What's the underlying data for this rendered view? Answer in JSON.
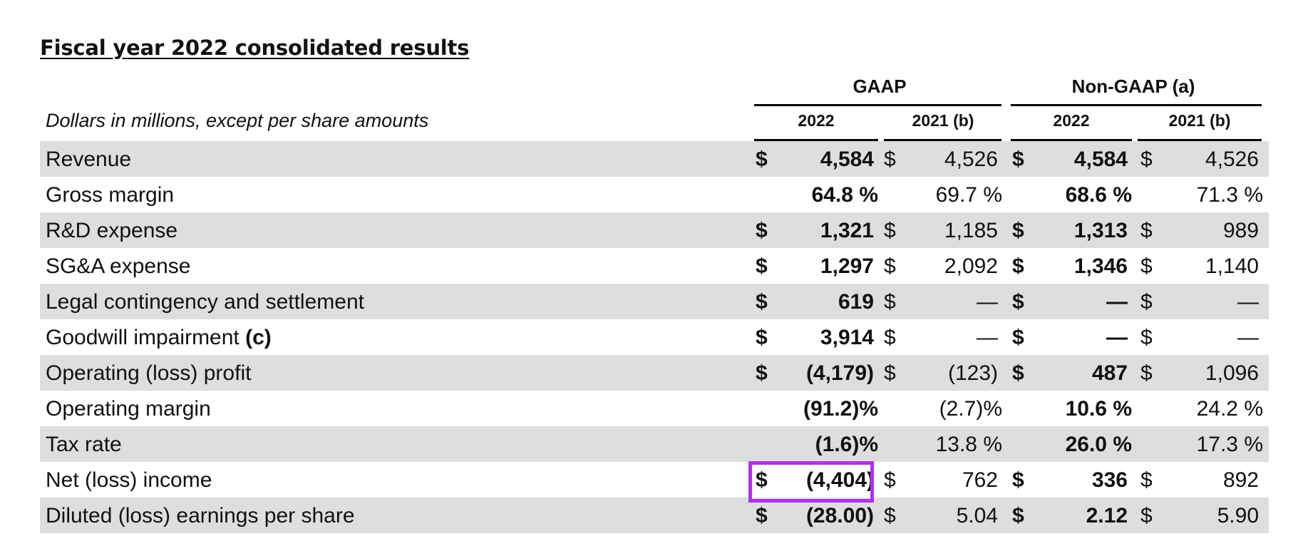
{
  "title": "Fiscal year 2022 consolidated results",
  "caption": "Dollars in millions, except per share amounts",
  "headers": {
    "groups": [
      "GAAP",
      "Non-GAAP (a)"
    ],
    "columns": [
      "2022",
      "2021 (b)",
      "2022",
      "2021 (b)"
    ]
  },
  "rows": [
    {
      "label": "Revenue",
      "note": "",
      "shaded": true,
      "cells": [
        {
          "cur": "$",
          "val": "4,584"
        },
        {
          "cur": "$",
          "val": "4,526"
        },
        {
          "cur": "$",
          "val": "4,584"
        },
        {
          "cur": "$",
          "val": "4,526"
        }
      ]
    },
    {
      "label": "Gross margin",
      "note": "",
      "shaded": false,
      "cells": [
        {
          "cur": "",
          "val": "64.8 %"
        },
        {
          "cur": "",
          "val": "69.7 %"
        },
        {
          "cur": "",
          "val": "68.6 %"
        },
        {
          "cur": "",
          "val": "71.3 %"
        }
      ]
    },
    {
      "label": "R&D expense",
      "note": "",
      "shaded": true,
      "cells": [
        {
          "cur": "$",
          "val": "1,321"
        },
        {
          "cur": "$",
          "val": "1,185"
        },
        {
          "cur": "$",
          "val": "1,313"
        },
        {
          "cur": "$",
          "val": "989"
        }
      ]
    },
    {
      "label": "SG&A expense",
      "note": "",
      "shaded": false,
      "cells": [
        {
          "cur": "$",
          "val": "1,297"
        },
        {
          "cur": "$",
          "val": "2,092"
        },
        {
          "cur": "$",
          "val": "1,346"
        },
        {
          "cur": "$",
          "val": "1,140"
        }
      ]
    },
    {
      "label": "Legal contingency and settlement",
      "note": "",
      "shaded": true,
      "cells": [
        {
          "cur": "$",
          "val": "619"
        },
        {
          "cur": "$",
          "val": "—"
        },
        {
          "cur": "$",
          "val": "—"
        },
        {
          "cur": "$",
          "val": "—"
        }
      ]
    },
    {
      "label": "Goodwill impairment ",
      "note": "(c)",
      "shaded": false,
      "cells": [
        {
          "cur": "$",
          "val": "3,914"
        },
        {
          "cur": "$",
          "val": "—"
        },
        {
          "cur": "$",
          "val": "—"
        },
        {
          "cur": "$",
          "val": "—"
        }
      ]
    },
    {
      "label": "Operating (loss) profit",
      "note": "",
      "shaded": true,
      "cells": [
        {
          "cur": "$",
          "val": "(4,179)"
        },
        {
          "cur": "$",
          "val": "(123)"
        },
        {
          "cur": "$",
          "val": "487"
        },
        {
          "cur": "$",
          "val": "1,096"
        }
      ]
    },
    {
      "label": "Operating margin",
      "note": "",
      "shaded": false,
      "cells": [
        {
          "cur": "",
          "val": "(91.2)%"
        },
        {
          "cur": "",
          "val": "(2.7)%"
        },
        {
          "cur": "",
          "val": "10.6 %"
        },
        {
          "cur": "",
          "val": "24.2 %"
        }
      ]
    },
    {
      "label": "Tax rate",
      "note": "",
      "shaded": true,
      "cells": [
        {
          "cur": "",
          "val": "(1.6)%"
        },
        {
          "cur": "",
          "val": "13.8 %"
        },
        {
          "cur": "",
          "val": "26.0 %"
        },
        {
          "cur": "",
          "val": "17.3 %"
        }
      ]
    },
    {
      "label": "Net (loss) income",
      "note": "",
      "shaded": false,
      "cells": [
        {
          "cur": "$",
          "val": "(4,404)"
        },
        {
          "cur": "$",
          "val": "762"
        },
        {
          "cur": "$",
          "val": "336"
        },
        {
          "cur": "$",
          "val": "892"
        }
      ]
    },
    {
      "label": "Diluted (loss) earnings per share",
      "note": "",
      "shaded": true,
      "cells": [
        {
          "cur": "$",
          "val": "(28.00)"
        },
        {
          "cur": "$",
          "val": "5.04"
        },
        {
          "cur": "$",
          "val": "2.12"
        },
        {
          "cur": "$",
          "val": "5.90"
        }
      ]
    }
  ],
  "highlight_color": "#b030ee",
  "row_shade_color": "#dedede"
}
